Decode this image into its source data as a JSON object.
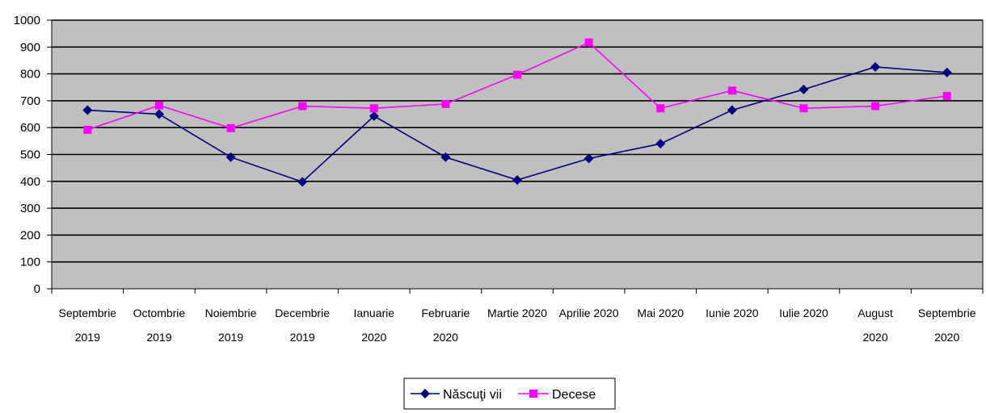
{
  "chart_data": {
    "type": "line",
    "categories": [
      [
        "Septembrie",
        "2019"
      ],
      [
        "Octombrie",
        "2019"
      ],
      [
        "Noiembrie",
        "2019"
      ],
      [
        "Decembrie",
        "2019"
      ],
      [
        "Ianuarie",
        "2020"
      ],
      [
        "Februarie",
        "2020"
      ],
      [
        "Martie 2020"
      ],
      [
        "Aprilie 2020"
      ],
      [
        "Mai 2020"
      ],
      [
        "Iunie 2020"
      ],
      [
        "Iulie 2020"
      ],
      [
        "August",
        "2020"
      ],
      [
        "Septembrie",
        "2020"
      ]
    ],
    "series": [
      {
        "name": "Născuţi vii",
        "color": "#000080",
        "marker": "diamond",
        "values": [
          665,
          650,
          490,
          398,
          643,
          490,
          405,
          485,
          540,
          665,
          742,
          826,
          805
        ]
      },
      {
        "name": "Decese",
        "color": "#FF00FF",
        "marker": "square",
        "values": [
          592,
          683,
          598,
          680,
          672,
          688,
          797,
          917,
          672,
          738,
          672,
          680,
          718
        ]
      }
    ],
    "yticks": [
      0,
      100,
      200,
      300,
      400,
      500,
      600,
      700,
      800,
      900,
      1000
    ],
    "ylim": [
      0,
      1000
    ],
    "plot_background": "#C0C0C0",
    "gridlines": true,
    "legend_position": "bottom"
  }
}
